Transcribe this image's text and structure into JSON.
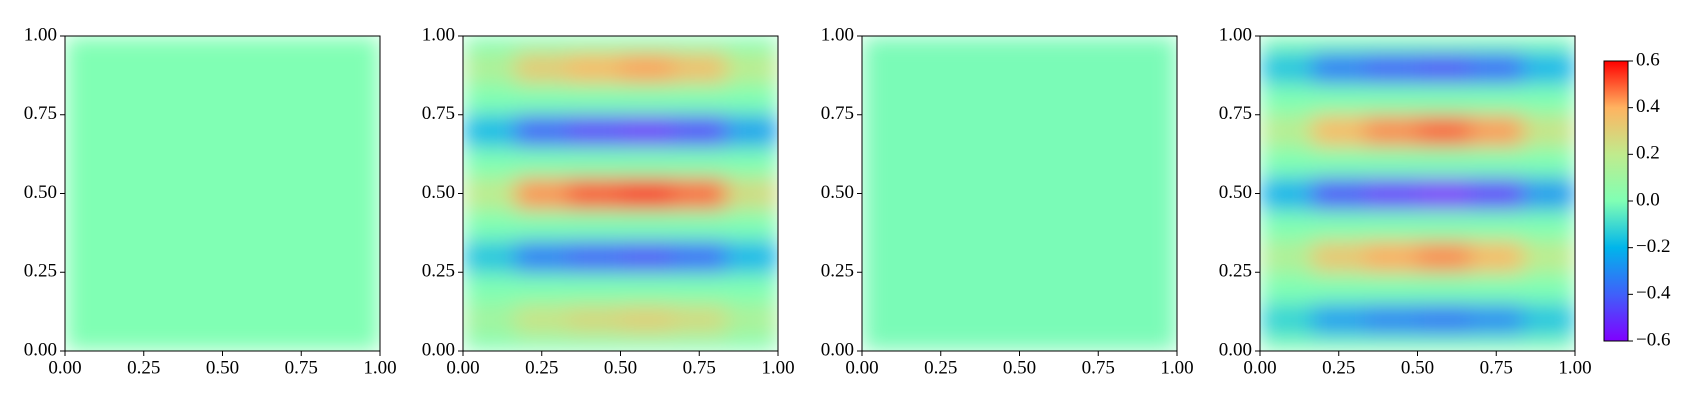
{
  "chart_data": [
    {
      "type": "heatmap",
      "xlim": [
        0,
        1
      ],
      "ylim": [
        0,
        1
      ],
      "xticks": [
        {
          "value": 0,
          "label": "0.00"
        },
        {
          "value": 0.25,
          "label": "0.25"
        },
        {
          "value": 0.5,
          "label": "0.50"
        },
        {
          "value": 0.75,
          "label": "0.75"
        },
        {
          "value": 1,
          "label": "1.00"
        }
      ],
      "yticks": [
        {
          "value": 0,
          "label": "0.00"
        },
        {
          "value": 0.25,
          "label": "0.25"
        },
        {
          "value": 0.5,
          "label": "0.50"
        },
        {
          "value": 0.75,
          "label": "0.75"
        },
        {
          "value": 1,
          "label": "1.00"
        }
      ],
      "x": [
        0.5
      ],
      "y": [
        0.5
      ],
      "z": [
        [
          0
        ]
      ]
    },
    {
      "type": "heatmap",
      "xlim": [
        0,
        1
      ],
      "ylim": [
        0,
        1
      ],
      "xticks": [
        {
          "value": 0,
          "label": "0.00"
        },
        {
          "value": 0.25,
          "label": "0.25"
        },
        {
          "value": 0.5,
          "label": "0.50"
        },
        {
          "value": 0.75,
          "label": "0.75"
        },
        {
          "value": 1,
          "label": "1.00"
        }
      ],
      "yticks": [
        {
          "value": 0,
          "label": "0.00"
        },
        {
          "value": 0.25,
          "label": "0.25"
        },
        {
          "value": 0.5,
          "label": "0.50"
        },
        {
          "value": 0.75,
          "label": "0.75"
        },
        {
          "value": 1,
          "label": "1.00"
        }
      ],
      "x": [
        0.083,
        0.25,
        0.417,
        0.583,
        0.75,
        0.917
      ],
      "y": [
        0,
        0.1,
        0.2,
        0.3,
        0.4,
        0.5,
        0.6,
        0.7,
        0.8,
        0.9,
        1
      ],
      "z": [
        [
          0,
          0,
          0,
          0,
          0,
          0
        ],
        [
          0.11,
          0.23,
          0.27,
          0.3,
          0.26,
          0.14
        ],
        [
          0,
          0,
          0,
          0,
          0,
          0
        ],
        [
          -0.16,
          -0.34,
          -0.41,
          -0.45,
          -0.38,
          -0.2
        ],
        [
          0,
          0,
          0,
          0,
          0,
          0
        ],
        [
          0.2,
          0.44,
          0.52,
          0.58,
          0.49,
          0.26
        ],
        [
          0,
          0,
          0,
          0,
          0,
          0
        ],
        [
          -0.19,
          -0.41,
          -0.5,
          -0.55,
          -0.47,
          -0.25
        ],
        [
          0,
          0,
          0,
          0,
          0,
          0
        ],
        [
          0.15,
          0.32,
          0.38,
          0.42,
          0.36,
          0.19
        ],
        [
          0,
          0,
          0,
          0,
          0,
          0
        ]
      ]
    },
    {
      "type": "heatmap",
      "xlim": [
        0,
        1
      ],
      "ylim": [
        0,
        1
      ],
      "xticks": [
        {
          "value": 0,
          "label": "0.00"
        },
        {
          "value": 0.25,
          "label": "0.25"
        },
        {
          "value": 0.5,
          "label": "0.50"
        },
        {
          "value": 0.75,
          "label": "0.75"
        },
        {
          "value": 1,
          "label": "1.00"
        }
      ],
      "yticks": [
        {
          "value": 0,
          "label": "0.00"
        },
        {
          "value": 0.25,
          "label": "0.25"
        },
        {
          "value": 0.5,
          "label": "0.50"
        },
        {
          "value": 0.75,
          "label": "0.75"
        },
        {
          "value": 1,
          "label": "1.00"
        }
      ],
      "x": [
        0.5
      ],
      "y": [
        0.5
      ],
      "z": [
        [
          -0.01
        ]
      ]
    },
    {
      "type": "heatmap",
      "xlim": [
        0,
        1
      ],
      "ylim": [
        0,
        1
      ],
      "xticks": [
        {
          "value": 0,
          "label": "0.00"
        },
        {
          "value": 0.25,
          "label": "0.25"
        },
        {
          "value": 0.5,
          "label": "0.50"
        },
        {
          "value": 0.75,
          "label": "0.75"
        },
        {
          "value": 1,
          "label": "1.00"
        }
      ],
      "yticks": [
        {
          "value": 0,
          "label": "0.00"
        },
        {
          "value": 0.25,
          "label": "0.25"
        },
        {
          "value": 0.5,
          "label": "0.50"
        },
        {
          "value": 0.75,
          "label": "0.75"
        },
        {
          "value": 1,
          "label": "1.00"
        }
      ],
      "x": [
        0.083,
        0.25,
        0.417,
        0.583,
        0.75,
        0.917
      ],
      "y": [
        0,
        0.1,
        0.2,
        0.3,
        0.4,
        0.5,
        0.6,
        0.7,
        0.8,
        0.9,
        1
      ],
      "z": [
        [
          0,
          0,
          0,
          0,
          0,
          0
        ],
        [
          -0.12,
          -0.26,
          -0.32,
          -0.35,
          -0.3,
          -0.16
        ],
        [
          0,
          0,
          0,
          0,
          0,
          0
        ],
        [
          0.16,
          0.34,
          0.41,
          0.45,
          0.38,
          0.2
        ],
        [
          0,
          0,
          0,
          0,
          0,
          0
        ],
        [
          -0.21,
          -0.45,
          -0.54,
          -0.6,
          -0.51,
          -0.27
        ],
        [
          0,
          0,
          0,
          0,
          0,
          0
        ],
        [
          0.18,
          0.38,
          0.45,
          0.5,
          0.43,
          0.23
        ],
        [
          0,
          0,
          0,
          0,
          0,
          0
        ],
        [
          -0.16,
          -0.34,
          -0.41,
          -0.45,
          -0.38,
          -0.2
        ],
        [
          0,
          0,
          0,
          0,
          0,
          0
        ]
      ]
    }
  ],
  "colorbar": {
    "clim": [
      -0.6,
      0.6
    ],
    "colors": [
      "#8000ff",
      "#3f60fa",
      "#00b5eb",
      "#80ffb4",
      "#c0eb8d",
      "#ffb360",
      "#ff0000"
    ],
    "ticks": [
      {
        "value": -0.6,
        "label": "−0.6"
      },
      {
        "value": -0.4,
        "label": "−0.4"
      },
      {
        "value": -0.2,
        "label": "−0.2"
      },
      {
        "value": 0,
        "label": "0.0"
      },
      0.2,
      0.4,
      0.6
    ]
  }
}
